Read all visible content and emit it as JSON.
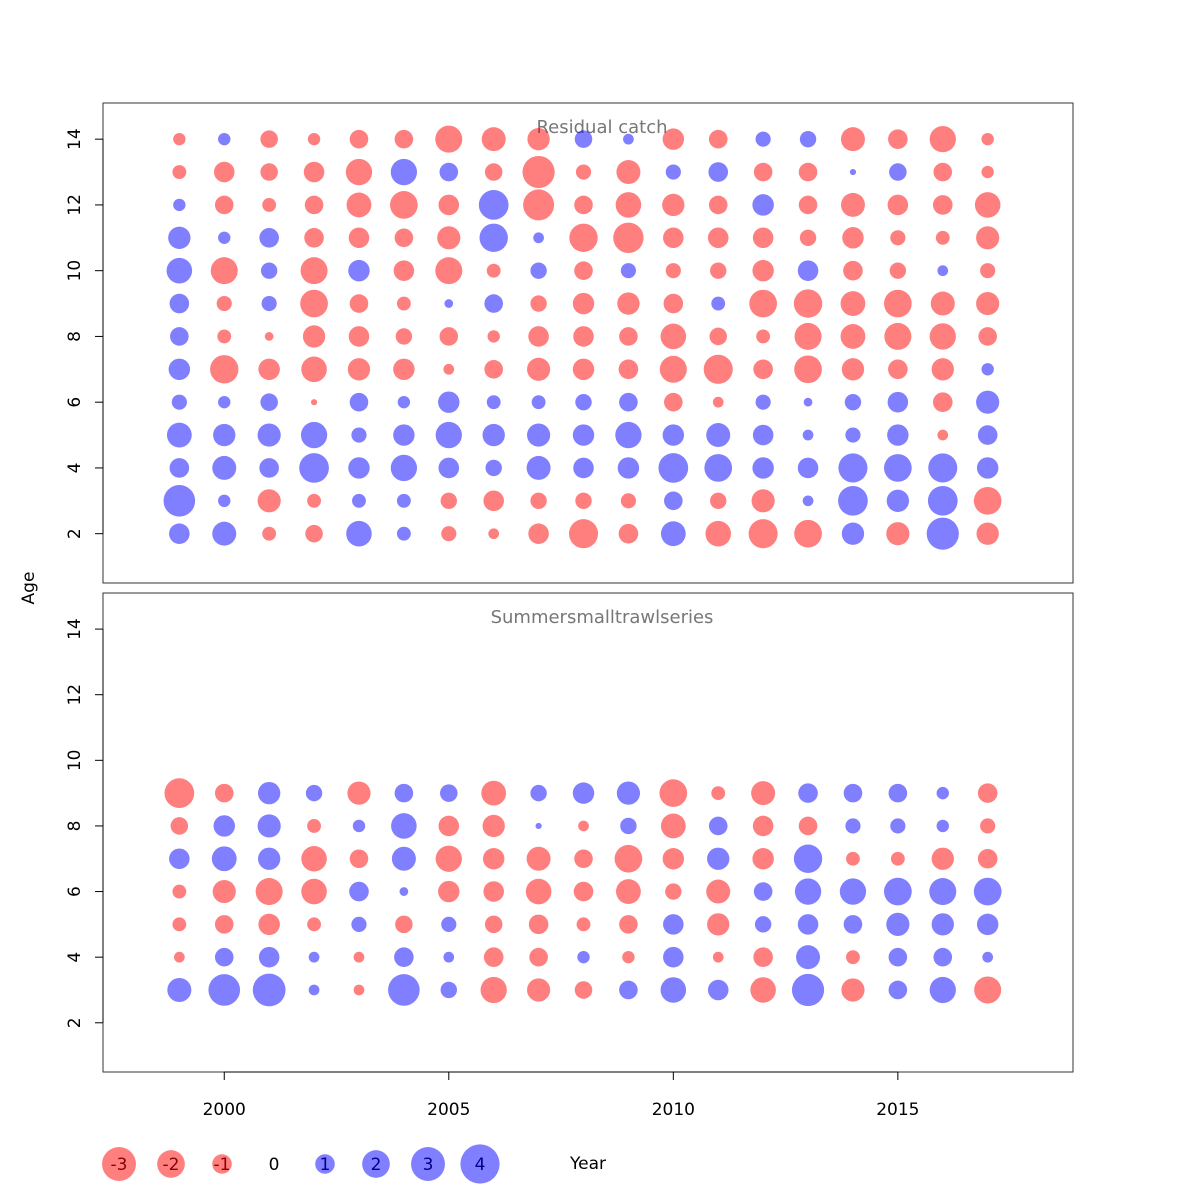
{
  "chart_data": {
    "type": "bubble",
    "xlabel": "Year",
    "ylabel": "Age",
    "xlim": [
      1997.3,
      2018.9
    ],
    "x_ticks": [
      2000,
      2005,
      2010,
      2015
    ],
    "x_tick_labels": [
      "2000",
      "2005",
      "2010",
      "2015"
    ],
    "colors": {
      "positive": "#0000FF",
      "negative": "#FF0000",
      "fill_opacity": 0.5,
      "panel_title": "#777777"
    },
    "legend": {
      "values": [
        -3,
        -2,
        -1,
        0,
        1,
        2,
        3,
        4
      ],
      "labels": [
        "-3",
        "-2",
        "-1",
        "0",
        "1",
        "2",
        "3",
        "4"
      ]
    },
    "panels": [
      {
        "title": "Residual catch",
        "ylim": [
          0.5,
          15.1
        ],
        "y_ticks": [
          2,
          4,
          6,
          8,
          10,
          12,
          14
        ],
        "y_tick_labels": [
          "2",
          "4",
          "6",
          "8",
          "10",
          "12",
          "14"
        ],
        "years": [
          1999,
          2000,
          2001,
          2002,
          2003,
          2004,
          2005,
          2006,
          2007,
          2008,
          2009,
          2010,
          2011,
          2012,
          2013,
          2014,
          2015,
          2016,
          2017
        ],
        "ages": [
          2,
          3,
          4,
          5,
          6,
          7,
          8,
          9,
          10,
          11,
          12,
          13,
          14
        ],
        "residuals_by_age": [
          [
            1.1,
            1.5,
            -0.5,
            -0.8,
            1.7,
            0.5,
            -0.6,
            -0.3,
            -1.1,
            -2.2,
            -1.0,
            1.6,
            -1.7,
            -2.2,
            -2.0,
            1.3,
            -1.4,
            2.7,
            -1.3
          ],
          [
            2.6,
            0.4,
            -1.4,
            -0.5,
            0.5,
            0.5,
            -0.7,
            -1.1,
            -0.7,
            -0.7,
            -0.6,
            0.9,
            -0.7,
            -1.4,
            0.3,
            2.3,
            1.3,
            2.3,
            -2.0
          ],
          [
            1.0,
            1.5,
            1.0,
            2.3,
            1.2,
            1.8,
            1.1,
            0.7,
            1.5,
            1.1,
            1.2,
            2.3,
            2.0,
            1.2,
            1.1,
            2.2,
            2.0,
            2.2,
            1.2
          ],
          [
            1.6,
            1.3,
            1.4,
            1.8,
            0.6,
            1.2,
            1.8,
            1.3,
            1.4,
            1.2,
            1.8,
            1.2,
            1.5,
            1.1,
            0.3,
            0.6,
            1.2,
            -0.3,
            1.0
          ],
          [
            0.6,
            0.4,
            0.8,
            -0.1,
            0.9,
            0.4,
            1.2,
            0.5,
            0.5,
            0.7,
            0.9,
            -0.9,
            -0.3,
            0.6,
            0.2,
            0.7,
            1.1,
            -1.0,
            1.4
          ],
          [
            1.2,
            -2.1,
            -1.2,
            -1.7,
            -1.3,
            -1.2,
            -0.3,
            -0.9,
            -1.4,
            -1.2,
            -1.0,
            -1.9,
            -2.2,
            -1.0,
            -2.0,
            -1.3,
            -1.0,
            -1.3,
            0.4
          ],
          [
            0.9,
            -0.5,
            -0.2,
            -1.3,
            -1.1,
            -0.7,
            -0.9,
            -0.4,
            -1.1,
            -1.1,
            -0.9,
            -1.7,
            -0.8,
            -0.5,
            -1.9,
            -1.6,
            -1.9,
            -1.8,
            -0.9
          ],
          [
            1.0,
            -0.6,
            0.6,
            -2.0,
            -0.9,
            -0.5,
            0.2,
            0.9,
            -0.7,
            -1.2,
            -1.3,
            -1.0,
            0.5,
            -2.0,
            -2.1,
            -1.6,
            -2.0,
            -1.5,
            -1.4
          ],
          [
            1.7,
            -1.9,
            0.7,
            -1.9,
            1.2,
            -1.1,
            -1.9,
            -0.5,
            0.7,
            -0.9,
            0.6,
            -0.6,
            -0.7,
            -1.2,
            1.1,
            -1.0,
            -0.7,
            0.3,
            -0.6
          ],
          [
            1.3,
            0.4,
            1.0,
            -1.0,
            -1.1,
            -0.9,
            -1.4,
            2.1,
            0.3,
            -2.1,
            -2.4,
            -1.1,
            -1.1,
            -1.1,
            -0.7,
            -1.2,
            -0.6,
            -0.5,
            -1.4
          ],
          [
            0.4,
            -0.9,
            -0.5,
            -0.9,
            -1.6,
            -2.0,
            -1.1,
            2.3,
            -2.5,
            -0.9,
            -1.7,
            -1.3,
            -0.9,
            1.2,
            -0.9,
            -1.5,
            -1.1,
            -1.0,
            -1.7
          ],
          [
            -0.5,
            -1.1,
            -0.8,
            -1.1,
            -1.8,
            1.8,
            0.9,
            -0.8,
            -2.7,
            -0.6,
            -1.5,
            0.6,
            1.0,
            -0.9,
            -0.9,
            0.1,
            0.8,
            -0.9,
            -0.4
          ],
          [
            -0.4,
            0.4,
            -0.8,
            -0.4,
            -0.9,
            -0.9,
            -1.9,
            -1.5,
            -1.3,
            0.8,
            0.3,
            -1.2,
            -0.9,
            0.6,
            0.7,
            -1.5,
            -1.0,
            -1.8,
            -0.4
          ]
        ]
      },
      {
        "title": "Summersmalltrawlseries",
        "ylim": [
          0.5,
          15.1
        ],
        "y_ticks": [
          2,
          4,
          6,
          8,
          10,
          12,
          14
        ],
        "y_tick_labels": [
          "2",
          "4",
          "6",
          "8",
          "10",
          "12",
          "14"
        ],
        "years": [
          1999,
          2000,
          2001,
          2002,
          2003,
          2004,
          2005,
          2006,
          2007,
          2008,
          2009,
          2010,
          2011,
          2012,
          2013,
          2014,
          2015,
          2016,
          2017
        ],
        "ages": [
          3,
          4,
          5,
          6,
          7,
          8,
          9
        ],
        "residuals_by_age": [
          [
            1.5,
            2.6,
            2.8,
            0.3,
            -0.3,
            2.6,
            0.7,
            -1.8,
            -1.4,
            -0.8,
            0.9,
            1.7,
            1.1,
            -1.7,
            2.7,
            -1.4,
            0.9,
            1.8,
            -1.9
          ],
          [
            -0.3,
            0.9,
            1.1,
            0.3,
            -0.3,
            1.0,
            0.3,
            -1.0,
            -0.9,
            0.4,
            -0.4,
            1.1,
            -0.3,
            -1.0,
            1.5,
            -0.5,
            0.9,
            0.9,
            0.3
          ],
          [
            -0.5,
            -0.9,
            -1.2,
            -0.5,
            0.6,
            -0.8,
            0.6,
            -0.8,
            -1.0,
            -0.5,
            -0.9,
            1.1,
            -1.3,
            0.7,
            1.1,
            0.9,
            1.4,
            1.3,
            1.2
          ],
          [
            -0.5,
            -1.4,
            -1.9,
            -1.7,
            1.0,
            0.2,
            -1.2,
            -1.1,
            -1.7,
            -1.0,
            -1.6,
            -0.7,
            -1.5,
            0.9,
            1.8,
            1.8,
            2.0,
            1.9,
            2.0
          ],
          [
            1.1,
            1.6,
            1.3,
            -1.7,
            -0.9,
            1.5,
            -1.8,
            -1.2,
            -1.5,
            -0.9,
            -2.0,
            -1.2,
            1.3,
            -1.2,
            2.1,
            -0.5,
            -0.5,
            -1.3,
            -1.0
          ],
          [
            -0.8,
            1.2,
            1.4,
            -0.5,
            0.4,
            1.7,
            -1.1,
            -1.3,
            0.1,
            -0.3,
            0.7,
            -1.6,
            0.9,
            -1.1,
            -0.9,
            0.6,
            0.6,
            0.4,
            -0.6
          ],
          [
            -2.3,
            -0.9,
            1.3,
            0.7,
            -1.4,
            0.9,
            0.8,
            -1.6,
            0.7,
            1.2,
            1.4,
            -2.0,
            -0.5,
            -1.5,
            1.0,
            0.9,
            0.9,
            0.4,
            -1.0
          ]
        ]
      }
    ]
  }
}
